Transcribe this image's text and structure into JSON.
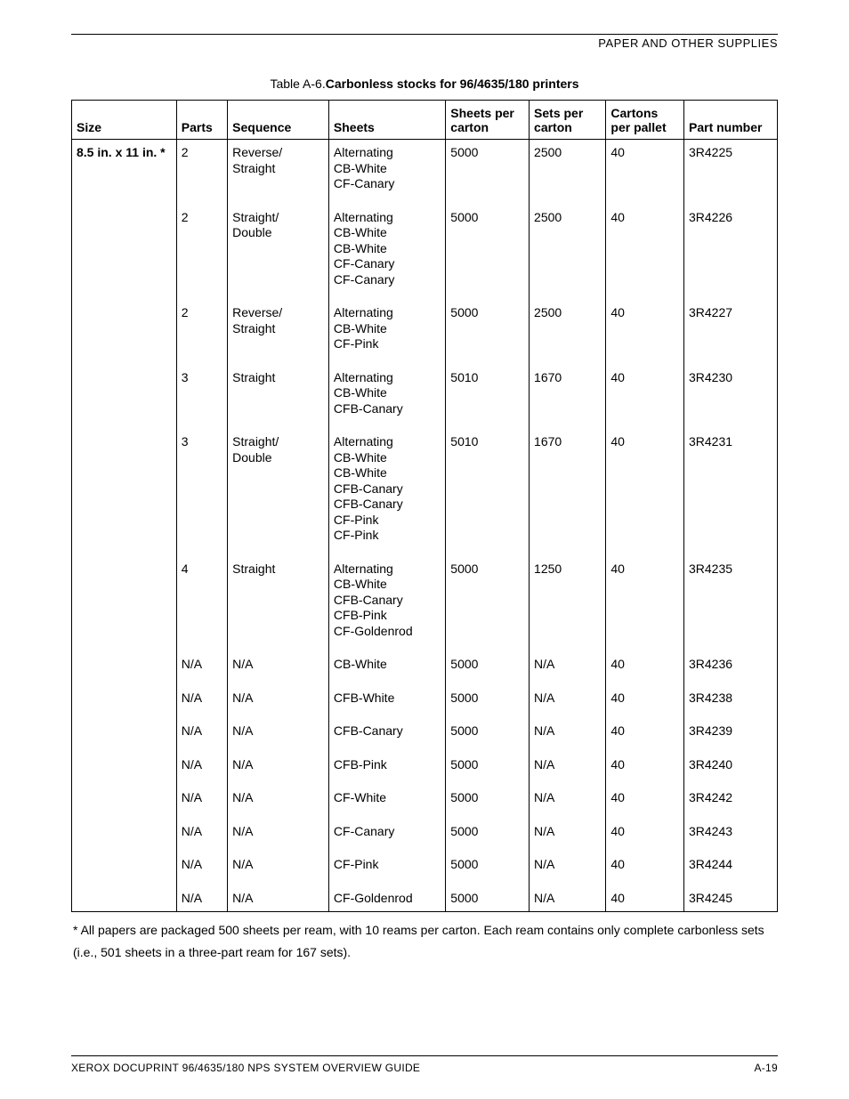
{
  "header": {
    "section": "PAPER AND OTHER SUPPLIES"
  },
  "caption": {
    "label": "Table A-6.",
    "title": "Carbonless stocks for 96/4635/180 printers"
  },
  "columns": {
    "size": "Size",
    "parts": "Parts",
    "sequence": "Sequence",
    "sheets": "Sheets",
    "sheets_per_carton": "Sheets per carton",
    "sets_per_carton": "Sets per carton",
    "cartons_per_pallet": "Cartons per pallet",
    "part_number": "Part number"
  },
  "size_label": "8.5 in. x 11 in. *",
  "rows": [
    {
      "parts": "2",
      "sequence": "Reverse/\nStraight",
      "sheets": "Alternating\nCB-White\nCF-Canary",
      "spc": "5000",
      "setpc": "2500",
      "cpp": "40",
      "pn": "3R4225"
    },
    {
      "parts": "2",
      "sequence": "Straight/\nDouble",
      "sheets": "Alternating\nCB-White\nCB-White\nCF-Canary\nCF-Canary",
      "spc": "5000",
      "setpc": "2500",
      "cpp": "40",
      "pn": "3R4226"
    },
    {
      "parts": "2",
      "sequence": "Reverse/\nStraight",
      "sheets": "Alternating\nCB-White\nCF-Pink",
      "spc": "5000",
      "setpc": "2500",
      "cpp": "40",
      "pn": "3R4227"
    },
    {
      "parts": "3",
      "sequence": "Straight",
      "sheets": "Alternating\nCB-White\nCFB-Canary",
      "spc": "5010",
      "setpc": "1670",
      "cpp": "40",
      "pn": "3R4230"
    },
    {
      "parts": "3",
      "sequence": "Straight/\nDouble",
      "sheets": "Alternating\nCB-White\nCB-White\nCFB-Canary\nCFB-Canary\nCF-Pink\nCF-Pink",
      "spc": "5010",
      "setpc": "1670",
      "cpp": "40",
      "pn": "3R4231"
    },
    {
      "parts": "4",
      "sequence": "Straight",
      "sheets": "Alternating\nCB-White\nCFB-Canary\nCFB-Pink\nCF-Goldenrod",
      "spc": "5000",
      "setpc": "1250",
      "cpp": "40",
      "pn": "3R4235"
    },
    {
      "parts": "N/A",
      "sequence": "N/A",
      "sheets": "CB-White",
      "spc": "5000",
      "setpc": "N/A",
      "cpp": "40",
      "pn": "3R4236"
    },
    {
      "parts": "N/A",
      "sequence": "N/A",
      "sheets": "CFB-White",
      "spc": "5000",
      "setpc": "N/A",
      "cpp": "40",
      "pn": "3R4238"
    },
    {
      "parts": "N/A",
      "sequence": "N/A",
      "sheets": "CFB-Canary",
      "spc": "5000",
      "setpc": "N/A",
      "cpp": "40",
      "pn": "3R4239"
    },
    {
      "parts": "N/A",
      "sequence": "N/A",
      "sheets": "CFB-Pink",
      "spc": "5000",
      "setpc": "N/A",
      "cpp": "40",
      "pn": "3R4240"
    },
    {
      "parts": "N/A",
      "sequence": "N/A",
      "sheets": "CF-White",
      "spc": "5000",
      "setpc": "N/A",
      "cpp": "40",
      "pn": "3R4242"
    },
    {
      "parts": "N/A",
      "sequence": "N/A",
      "sheets": "CF-Canary",
      "spc": "5000",
      "setpc": "N/A",
      "cpp": "40",
      "pn": "3R4243"
    },
    {
      "parts": "N/A",
      "sequence": "N/A",
      "sheets": "CF-Pink",
      "spc": "5000",
      "setpc": "N/A",
      "cpp": "40",
      "pn": "3R4244"
    },
    {
      "parts": "N/A",
      "sequence": "N/A",
      "sheets": "CF-Goldenrod",
      "spc": "5000",
      "setpc": "N/A",
      "cpp": "40",
      "pn": "3R4245"
    }
  ],
  "footnote": "* All papers are packaged 500 sheets per ream, with 10 reams per carton. Each ream contains only complete carbonless sets (i.e., 501 sheets in a three-part ream for 167 sets).",
  "footer": {
    "left": "XEROX DOCUPRINT 96/4635/180 NPS SYSTEM OVERVIEW GUIDE",
    "right": "A-19"
  }
}
